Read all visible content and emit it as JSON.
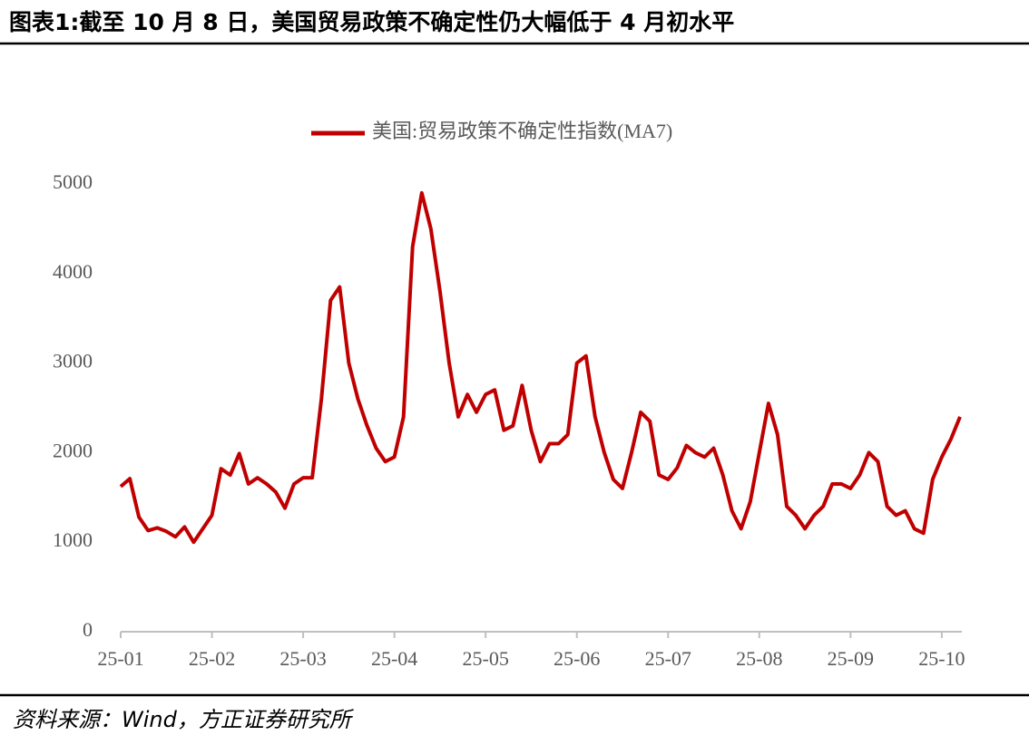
{
  "title": "图表1:截至 10 月 8 日，美国贸易政策不确定性仍大幅低于 4 月初水平",
  "source": "资料来源：Wind，方正证券研究所",
  "chart_data": {
    "type": "line",
    "categories": [
      "25-01",
      null,
      null,
      null,
      null,
      null,
      null,
      null,
      null,
      null,
      "25-02",
      null,
      null,
      null,
      null,
      null,
      null,
      null,
      null,
      null,
      "25-03",
      null,
      null,
      null,
      null,
      null,
      null,
      null,
      null,
      null,
      "25-04",
      null,
      null,
      null,
      null,
      null,
      null,
      null,
      null,
      null,
      "25-05",
      null,
      null,
      null,
      null,
      null,
      null,
      null,
      null,
      null,
      "25-06",
      null,
      null,
      null,
      null,
      null,
      null,
      null,
      null,
      null,
      "25-07",
      null,
      null,
      null,
      null,
      null,
      null,
      null,
      null,
      null,
      "25-08",
      null,
      null,
      null,
      null,
      null,
      null,
      null,
      null,
      null,
      "25-09",
      null,
      null,
      null,
      null,
      null,
      null,
      null,
      null,
      null,
      "25-10",
      null,
      null
    ],
    "series": [
      {
        "name": "美国:贸易政策不确定性指数(MA7)",
        "color": "#c00000",
        "values": [
          1620,
          1710,
          1280,
          1130,
          1160,
          1120,
          1060,
          1170,
          1000,
          1150,
          1300,
          1820,
          1750,
          1990,
          1650,
          1720,
          1650,
          1560,
          1380,
          1650,
          1720,
          1720,
          2600,
          3700,
          3850,
          3000,
          2600,
          2300,
          2050,
          1900,
          1950,
          2400,
          4300,
          4900,
          4500,
          3800,
          3000,
          2400,
          2650,
          2450,
          2650,
          2700,
          2250,
          2300,
          2750,
          2250,
          1900,
          2100,
          2100,
          2200,
          3000,
          3080,
          2400,
          2000,
          1700,
          1600,
          2000,
          2450,
          2350,
          1750,
          1700,
          1830,
          2080,
          2000,
          1950,
          2050,
          1750,
          1350,
          1150,
          1450,
          2000,
          2550,
          2200,
          1400,
          1300,
          1150,
          1300,
          1400,
          1650,
          1650,
          1600,
          1750,
          2000,
          1900,
          1400,
          1300,
          1350,
          1150,
          1100,
          1700,
          1950,
          2150,
          2400
        ]
      }
    ],
    "ylim": [
      0,
      5000
    ],
    "yticks": [
      0,
      1000,
      2000,
      3000,
      4000,
      5000
    ],
    "grid": false,
    "legend": "top"
  }
}
